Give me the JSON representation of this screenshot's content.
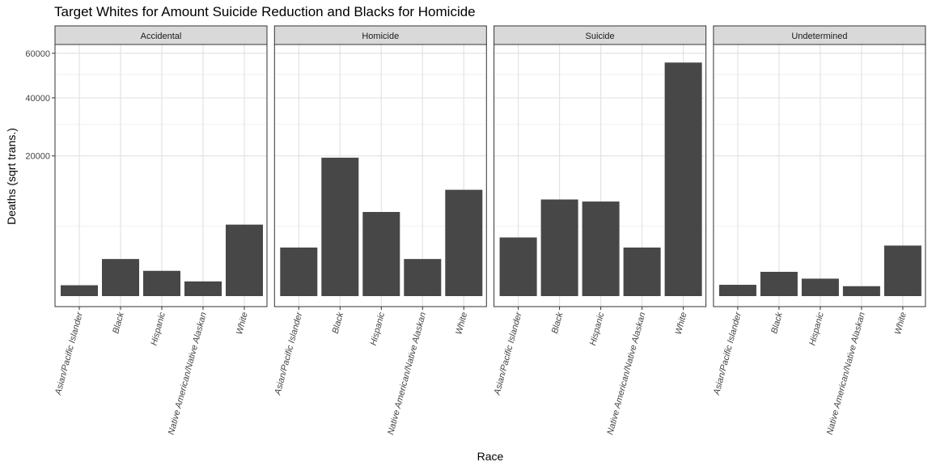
{
  "chart_data": {
    "type": "bar",
    "title": "Target Whites for Amount Suicide Reduction and Blacks for Homicide",
    "xlabel": "Race",
    "ylabel": "Deaths (sqrt trans.)",
    "y_scale": "sqrt",
    "ylim": [
      0,
      64000
    ],
    "y_ticks": [
      20000,
      40000,
      60000
    ],
    "y_tick_labels": [
      "20000",
      "40000",
      "60000"
    ],
    "grid": true,
    "categories": [
      "Asian/Pacific Islander",
      "Black",
      "Hispanic",
      "Native American/Native Alaskan",
      "White"
    ],
    "bar_color": "#474747",
    "facets": [
      {
        "name": "Accidental",
        "values": [
          120,
          1400,
          650,
          220,
          5200
        ]
      },
      {
        "name": "Homicide",
        "values": [
          2400,
          19500,
          7200,
          1400,
          11500
        ]
      },
      {
        "name": "Suicide",
        "values": [
          3500,
          9500,
          9100,
          2400,
          55500
        ]
      },
      {
        "name": "Undetermined",
        "values": [
          130,
          600,
          310,
          100,
          2600
        ]
      }
    ]
  }
}
